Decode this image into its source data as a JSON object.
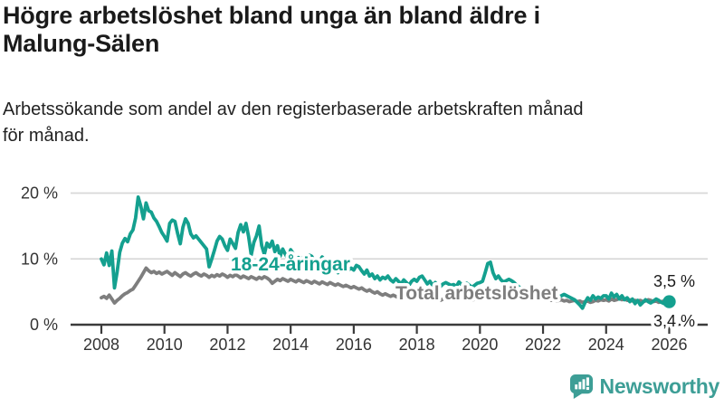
{
  "header": {
    "title_line1": "Högre arbetslöshet bland unga än bland äldre i",
    "title_line2": "Malung-Sälen",
    "subtitle_line1": "Arbetssökande som andel av den registerbaserade arbetskraften månad",
    "subtitle_line2": "för månad."
  },
  "branding": {
    "name": "Newsworthy",
    "logo_color": "#3d9e96",
    "logo_icon": "bar-chart-speech-bubble-icon"
  },
  "colors": {
    "youth": "#14a08f",
    "total": "#7e7e7e",
    "grid": "#d8d8d8",
    "axis": "#3b3b3b",
    "tick_label": "#333333",
    "end_label": "#1a1a1a",
    "halo": "#ffffff"
  },
  "chart_data": {
    "type": "line",
    "unit": "%",
    "frequency": "monthly",
    "x_start_year": 2008,
    "x_start_month": 1,
    "x_end_year": 2026,
    "x_end_month": 1,
    "xticks": [
      2008,
      2010,
      2012,
      2014,
      2016,
      2018,
      2020,
      2022,
      2024,
      2026
    ],
    "yticks": [
      {
        "value": 0,
        "label": "0 %"
      },
      {
        "value": 10,
        "label": "10 %"
      },
      {
        "value": 20,
        "label": "20 %"
      }
    ],
    "ylim": [
      0,
      21.5
    ],
    "grid": "horizontal-only",
    "legend_position": "inline-labels",
    "series": [
      {
        "name": "18-24-åringar",
        "color": "#14a08f",
        "end_label": "3,5 %",
        "end_value": 3.5,
        "values": [
          10.0,
          9.1,
          10.9,
          9.0,
          11.2,
          5.6,
          8.0,
          11.0,
          12.4,
          13.1,
          12.6,
          13.8,
          14.4,
          16.2,
          19.4,
          18.0,
          16.1,
          18.5,
          17.3,
          17.1,
          16.2,
          15.7,
          14.9,
          14.0,
          13.4,
          12.7,
          15.4,
          15.9,
          15.7,
          13.9,
          12.3,
          14.8,
          16.1,
          15.4,
          13.8,
          13.2,
          13.5,
          13.0,
          12.5,
          12.0,
          11.5,
          8.8,
          10.0,
          11.3,
          12.7,
          13.4,
          13.0,
          12.0,
          11.3,
          13.0,
          12.3,
          11.6,
          14.0,
          15.2,
          14.1,
          15.4,
          13.4,
          10.6,
          12.5,
          13.5,
          15.0,
          12.0,
          10.7,
          12.4,
          11.8,
          12.7,
          11.1,
          12.0,
          10.4,
          11.5,
          10.7,
          10.0,
          11.4,
          10.8,
          9.5,
          10.2,
          9.8,
          10.4,
          10.0,
          10.6,
          10.4,
          9.7,
          9.2,
          9.6,
          10.3,
          9.8,
          9.3,
          8.7,
          9.6,
          8.3,
          7.9,
          8.9,
          9.4,
          8.8,
          8.3,
          8.6,
          8.3,
          9.0,
          8.8,
          8.2,
          7.7,
          8.3,
          7.4,
          7.7,
          7.0,
          7.4,
          6.8,
          7.2,
          7.0,
          7.4,
          6.8,
          6.5,
          7.0,
          6.6,
          6.2,
          6.8,
          6.4,
          6.0,
          6.6,
          6.9,
          6.6,
          7.2,
          7.4,
          6.8,
          6.2,
          6.6,
          6.0,
          6.4,
          6.0,
          5.8,
          6.2,
          6.4,
          6.2,
          6.0,
          6.1,
          5.8,
          6.5,
          6.1,
          5.9,
          6.3,
          6.0,
          5.7,
          6.0,
          6.3,
          6.4,
          6.6,
          7.9,
          9.3,
          9.5,
          7.9,
          7.0,
          7.4,
          6.8,
          6.5,
          6.7,
          6.9,
          6.7,
          6.4,
          6.0,
          5.7,
          5.4,
          5.6,
          5.2,
          5.0,
          4.8,
          5.0,
          4.7,
          4.9,
          4.7,
          4.5,
          4.3,
          4.5,
          4.2,
          4.0,
          4.2,
          4.4,
          4.6,
          4.4,
          4.2,
          4.0,
          3.8,
          3.4,
          3.0,
          2.5,
          3.4,
          4.1,
          3.7,
          4.4,
          3.9,
          4.2,
          4.0,
          4.4,
          4.4,
          3.9,
          4.8,
          4.2,
          4.6,
          3.9,
          4.4,
          3.8,
          4.1,
          3.5,
          3.9,
          3.2,
          3.7,
          3.0,
          3.4,
          3.8,
          3.5,
          3.3,
          3.6,
          3.9,
          3.7,
          3.4,
          3.2,
          3.4,
          3.5
        ]
      },
      {
        "name": "Total arbetslöshet",
        "color": "#7e7e7e",
        "end_label": "3,4 %",
        "end_value": 3.4,
        "values": [
          4.1,
          4.3,
          4.0,
          4.5,
          3.9,
          3.3,
          3.7,
          4.0,
          4.4,
          4.7,
          4.9,
          5.2,
          5.4,
          6.0,
          6.6,
          7.2,
          7.9,
          8.6,
          8.2,
          7.9,
          8.1,
          7.8,
          8.0,
          7.7,
          7.9,
          8.1,
          7.8,
          7.5,
          7.9,
          7.6,
          7.3,
          7.7,
          7.9,
          7.6,
          7.4,
          7.7,
          7.9,
          7.6,
          7.4,
          7.7,
          7.5,
          7.2,
          7.5,
          7.3,
          7.6,
          7.4,
          7.7,
          7.5,
          7.2,
          7.5,
          7.3,
          7.6,
          7.4,
          7.1,
          7.4,
          7.2,
          7.0,
          7.3,
          7.1,
          6.9,
          7.2,
          7.0,
          7.3,
          7.1,
          6.8,
          6.3,
          6.6,
          6.9,
          6.7,
          7.0,
          6.8,
          6.6,
          6.9,
          6.7,
          6.5,
          6.8,
          6.6,
          6.4,
          6.7,
          6.5,
          6.3,
          6.6,
          6.4,
          6.2,
          6.5,
          6.3,
          6.1,
          6.4,
          6.2,
          6.0,
          6.2,
          6.0,
          5.8,
          6.0,
          5.8,
          5.6,
          5.8,
          5.6,
          5.4,
          5.6,
          5.3,
          5.1,
          5.3,
          5.0,
          4.8,
          5.0,
          4.7,
          4.5,
          4.7,
          4.5,
          4.3,
          4.5,
          4.3,
          4.1,
          4.3,
          4.5,
          4.2,
          4.4,
          4.2,
          4.0,
          4.2,
          4.0,
          4.3,
          4.1,
          3.9,
          4.1,
          3.9,
          4.1,
          3.9,
          3.7,
          3.9,
          4.1,
          3.9,
          4.1,
          3.9,
          3.7,
          3.9,
          4.1,
          3.9,
          3.7,
          3.9,
          3.7,
          3.9,
          4.1,
          4.2,
          4.3,
          4.7,
          5.2,
          5.4,
          5.2,
          5.0,
          5.2,
          5.0,
          4.8,
          4.9,
          4.7,
          4.8,
          4.6,
          4.5,
          4.6,
          4.4,
          4.2,
          4.3,
          4.1,
          4.2,
          4.0,
          4.1,
          3.9,
          4.0,
          3.8,
          3.9,
          3.7,
          3.8,
          3.6,
          3.7,
          3.8,
          3.6,
          3.7,
          3.5,
          3.6,
          3.7,
          3.5,
          3.6,
          3.4,
          3.5,
          3.6,
          3.4,
          3.5,
          3.7,
          3.6,
          3.8,
          3.7,
          3.8,
          3.6,
          3.9,
          3.7,
          3.8,
          4.0,
          3.8,
          3.9,
          3.7,
          3.8,
          3.6,
          3.7,
          3.6,
          3.7,
          3.5,
          3.6,
          3.8,
          3.7,
          3.5,
          3.6,
          3.4,
          3.5,
          3.6,
          3.5,
          3.4
        ]
      }
    ]
  }
}
